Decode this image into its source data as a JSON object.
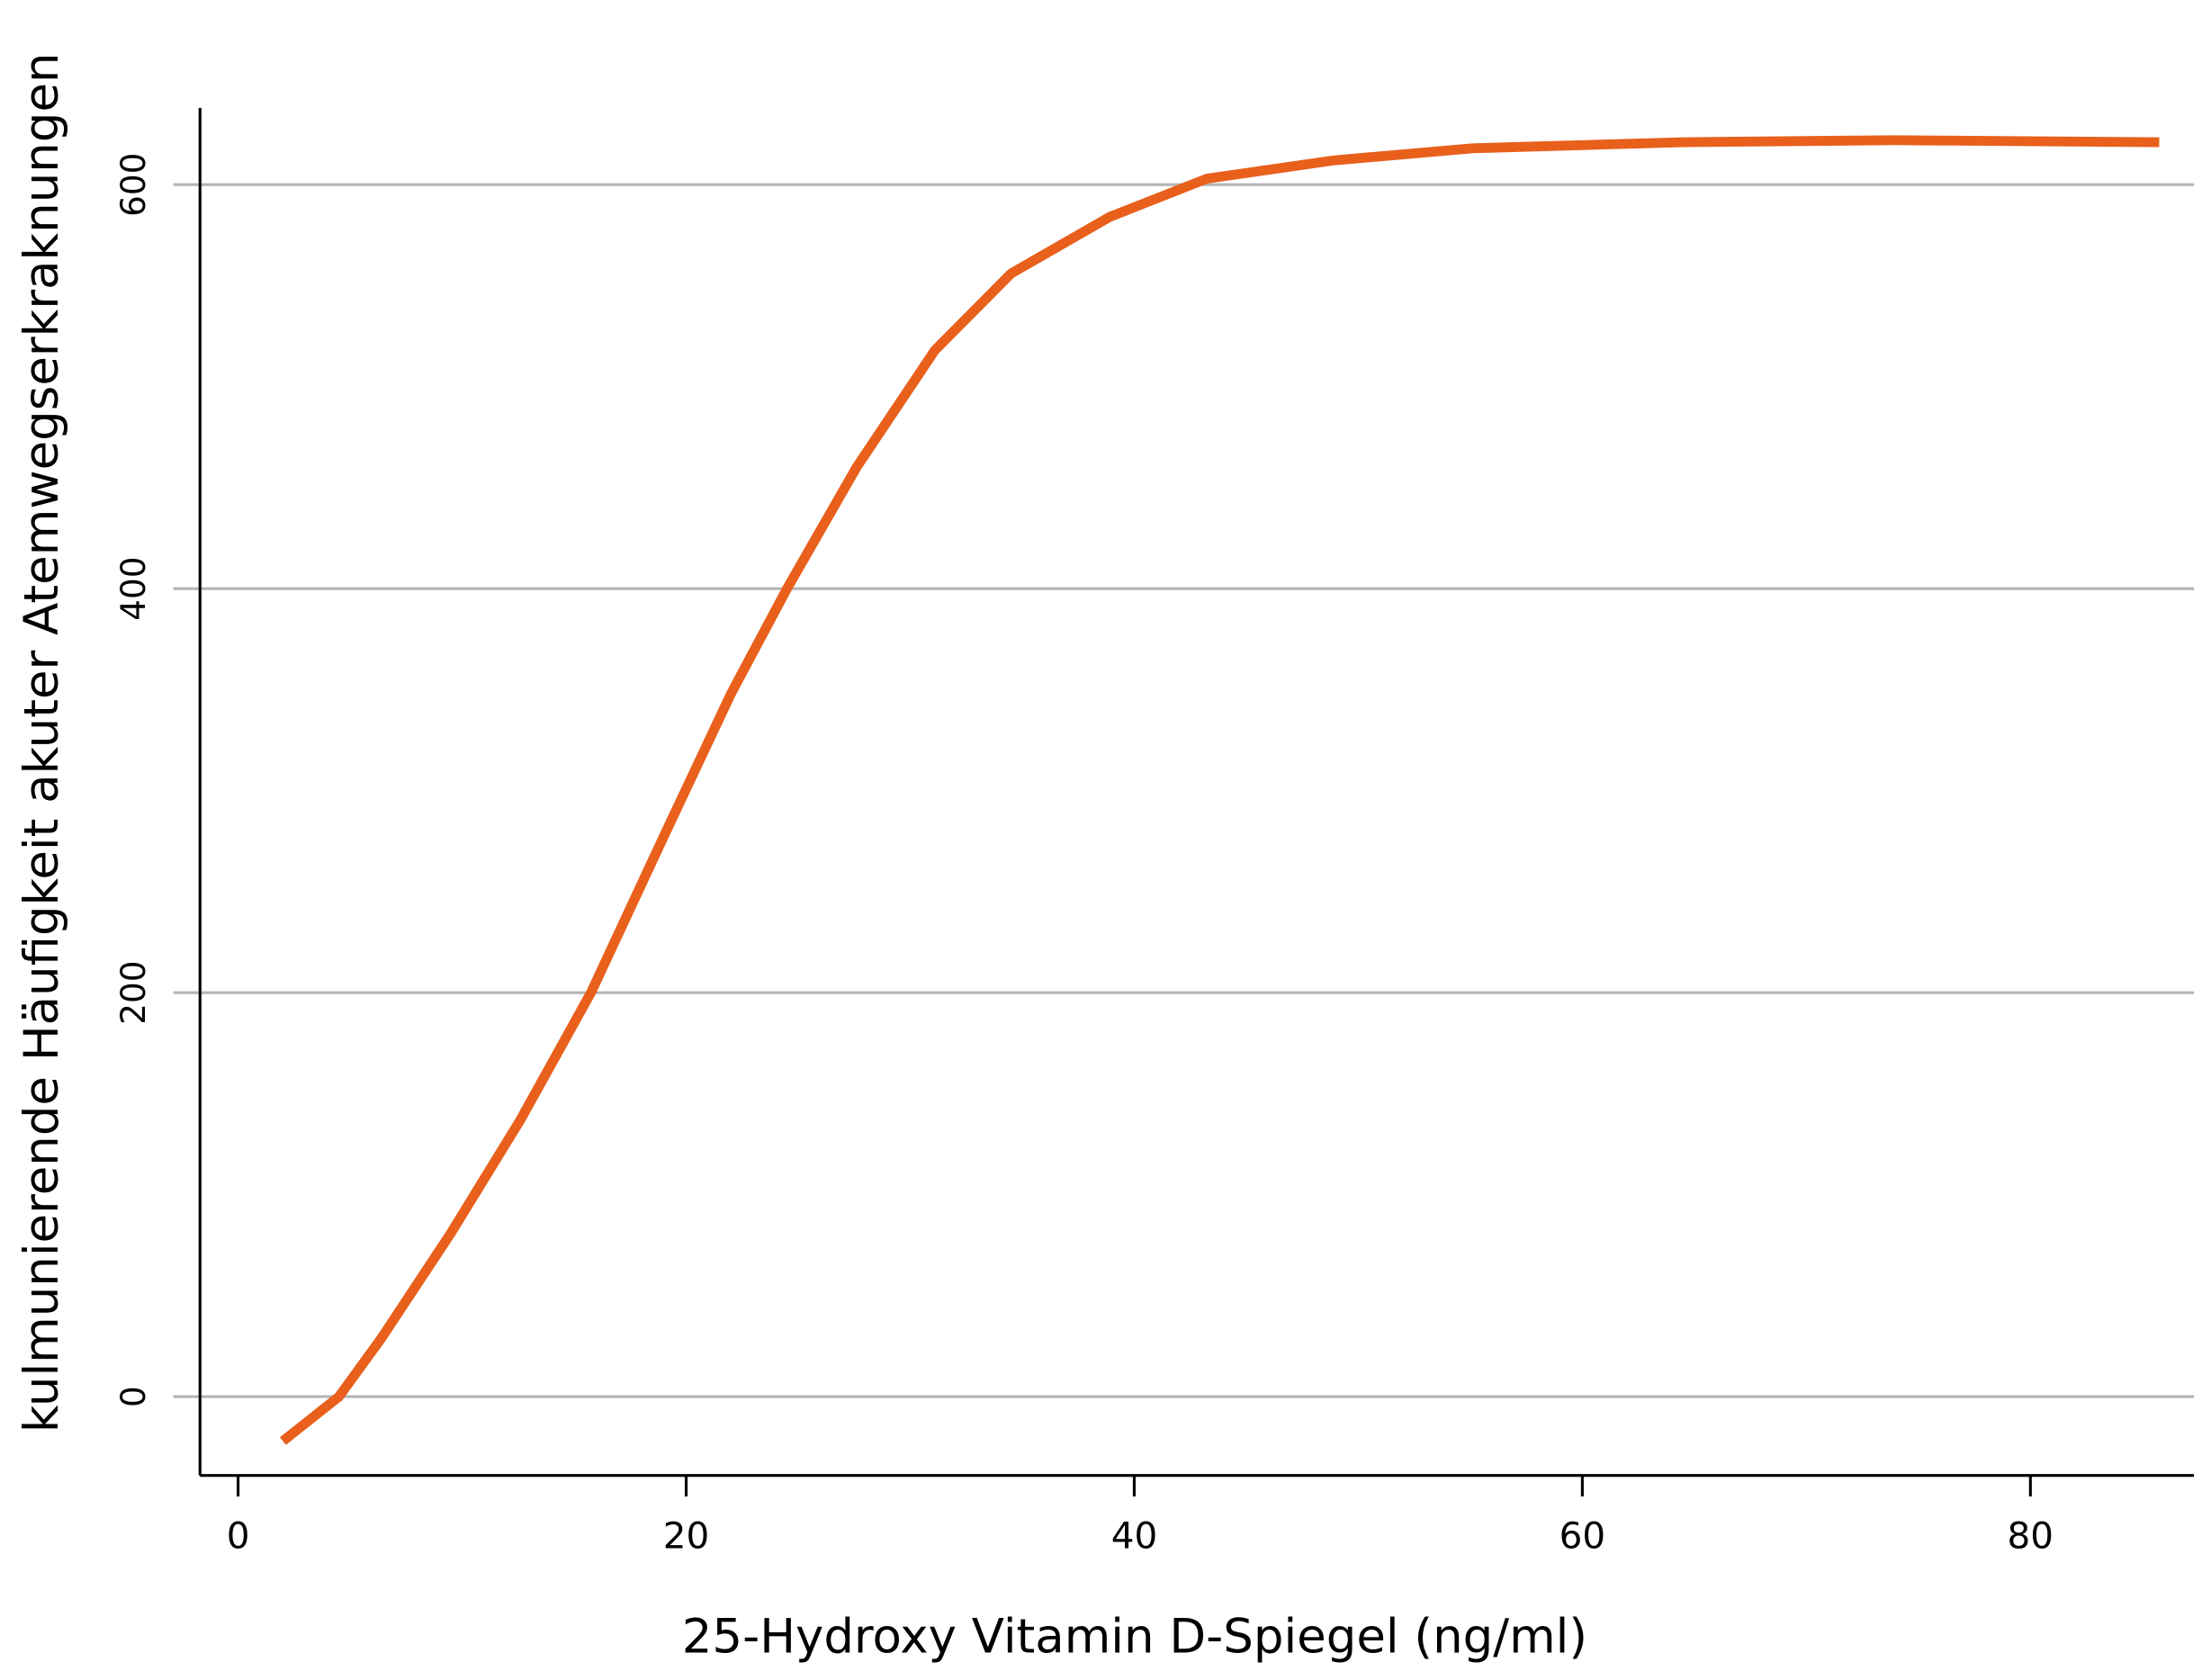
{
  "chart_data": {
    "type": "line",
    "x_label": "25-Hydroxy Vitamin D-Spiegel (ng/ml)",
    "y_label": "kulmunierende Häufigkeit akuter  Atemwegserkraknungen",
    "x": [
      2,
      4.5,
      6.4,
      9.5,
      12.6,
      15.75,
      18.9,
      22,
      24.5,
      27.6,
      31.1,
      34.5,
      38.9,
      43.25,
      48.9,
      55.1,
      64.5,
      73.9,
      85.75
    ],
    "series": [
      {
        "name": "Häufigkeit",
        "color": "#e8601c",
        "values": [
          -22,
          0,
          29,
          81,
          137,
          200,
          275,
          348,
          400,
          460,
          518,
          556,
          584,
          603,
          612,
          618,
          621,
          622,
          621
        ]
      }
    ],
    "xlim": [
      -1.7,
      87.3
    ],
    "ylim": [
      -39,
      638
    ],
    "xticks": [
      0,
      20,
      40,
      60,
      80
    ],
    "yticks": [
      0,
      200,
      400,
      600
    ],
    "grid": true
  }
}
